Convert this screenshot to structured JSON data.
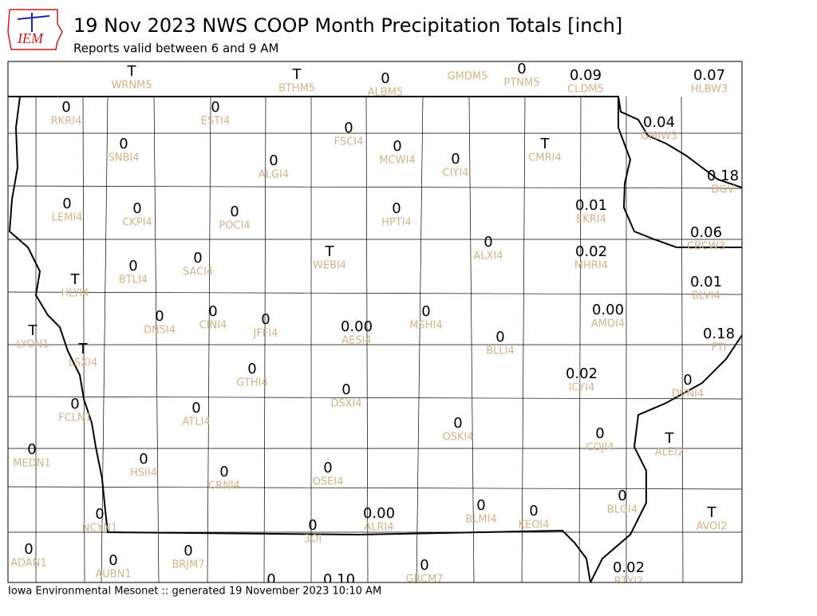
{
  "header": {
    "logo": "IEM",
    "title": "19 Nov 2023 NWS COOP Month Precipitation Totals [inch]",
    "subtitle": "Reports valid between 6 and 9 AM"
  },
  "footer": "Iowa Environmental Mesonet :: generated 19 November 2023 10:10 AM",
  "stations": [
    {
      "value": "T",
      "id": "WRNM5"
    },
    {
      "value": "T",
      "id": "BTHM5"
    },
    {
      "value": "0",
      "id": "ALBM5"
    },
    {
      "id": "GMDM5"
    },
    {
      "value": "0",
      "id": "PTNM5"
    },
    {
      "value": "0.09",
      "id": "CLDM5"
    },
    {
      "value": "0.07",
      "id": "HLBW3"
    },
    {
      "value": "0",
      "id": "RKRI4"
    },
    {
      "value": "0",
      "id": "ESTI4"
    },
    {
      "value": "0",
      "id": "FSCI4"
    },
    {
      "value": "0.04",
      "id": "GMIW3"
    },
    {
      "value": "0",
      "id": "SNBI4"
    },
    {
      "value": "0",
      "id": "MCWI4"
    },
    {
      "value": "0",
      "id": "CIYI4"
    },
    {
      "value": "T",
      "id": "CMRI4"
    },
    {
      "value": "0",
      "id": "ALGI4"
    },
    {
      "value": "0.18",
      "id": "DGV"
    },
    {
      "value": "0",
      "id": "LEMI4"
    },
    {
      "value": "0",
      "id": "CKPI4"
    },
    {
      "value": "0",
      "id": "POCI4"
    },
    {
      "value": "0",
      "id": "HPTI4"
    },
    {
      "value": "0.01",
      "id": "EKRI4"
    },
    {
      "value": "0.06",
      "id": "CBCW3"
    },
    {
      "value": "0",
      "id": "ALXI4"
    },
    {
      "value": "0.02",
      "id": "MHRI4"
    },
    {
      "value": "T",
      "id": "WEBI4"
    },
    {
      "value": "0",
      "id": "SACI4"
    },
    {
      "value": "0",
      "id": "BTLI4"
    },
    {
      "value": "T",
      "id": "HLYI4"
    },
    {
      "value": "0.01",
      "id": "BLVI4"
    },
    {
      "value": "0.00",
      "id": "AMOI4"
    },
    {
      "value": "0",
      "id": "DNSI4"
    },
    {
      "value": "0",
      "id": "CINI4"
    },
    {
      "value": "0",
      "id": "JFFI4"
    },
    {
      "value": "0.00",
      "id": "AESI4"
    },
    {
      "value": "0",
      "id": "MSHI4"
    },
    {
      "value": "0",
      "id": "BLLI4"
    },
    {
      "value": "0.18",
      "id": "FTI"
    },
    {
      "value": "T",
      "id": "LYON1"
    },
    {
      "value": "T",
      "id": "LSXI4"
    },
    {
      "value": "0",
      "id": "GTHI4"
    },
    {
      "value": "0",
      "id": "DSXI4"
    },
    {
      "value": "0.02",
      "id": "ICYI4"
    },
    {
      "value": "0",
      "id": "DVNI4"
    },
    {
      "value": "0",
      "id": "FCLN1"
    },
    {
      "value": "0",
      "id": "ATLI4"
    },
    {
      "value": "0",
      "id": "OSKI4"
    },
    {
      "value": "0",
      "id": "COJI4"
    },
    {
      "value": "T",
      "id": "ALEI2"
    },
    {
      "value": "0",
      "id": "MEDN1"
    },
    {
      "value": "0",
      "id": "HSII4"
    },
    {
      "value": "0",
      "id": "CRNI4"
    },
    {
      "value": "0",
      "id": "OSEI4"
    },
    {
      "value": "0",
      "id": "BLGI4"
    },
    {
      "value": "0",
      "id": "NCYN1"
    },
    {
      "value": "0.00",
      "id": "ALRI4"
    },
    {
      "value": "0",
      "id": "BLMI4"
    },
    {
      "value": "0",
      "id": "KEOI4"
    },
    {
      "value": "T",
      "id": "AVOI2"
    },
    {
      "value": "0",
      "id": "3OI"
    },
    {
      "value": "0",
      "id": "ADAN1"
    },
    {
      "value": "0",
      "id": "AUBN1"
    },
    {
      "value": "0",
      "id": "BRJM7"
    },
    {
      "value": "0",
      "id": "GRCM7"
    },
    {
      "value": "0.02",
      "id": "BTYI2"
    },
    {
      "value": "0"
    },
    {
      "value": "0.10"
    }
  ]
}
